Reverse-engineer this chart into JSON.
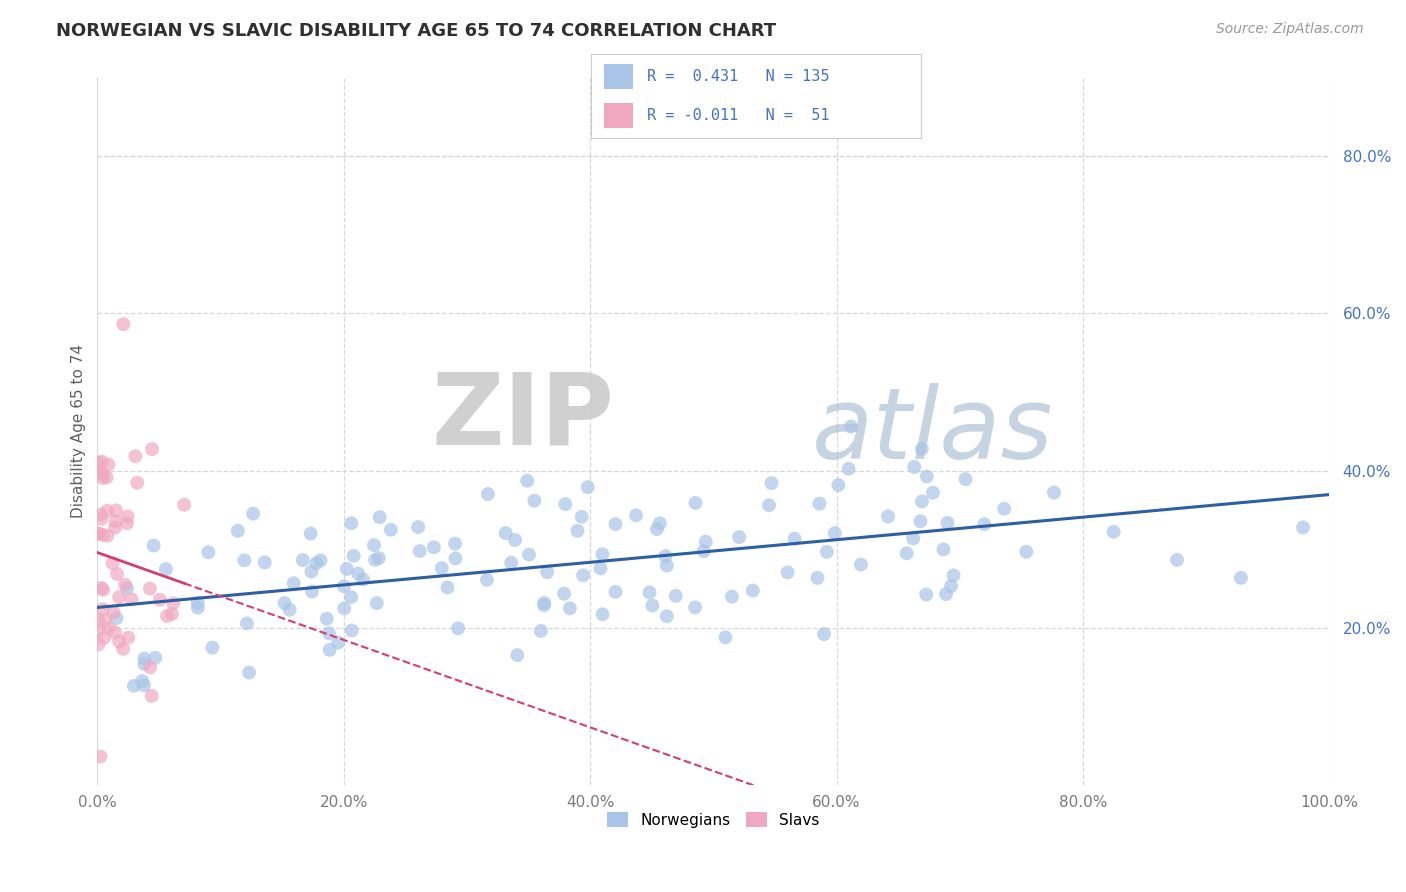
{
  "title": "NORWEGIAN VS SLAVIC DISABILITY AGE 65 TO 74 CORRELATION CHART",
  "source": "Source: ZipAtlas.com",
  "ylabel": "Disability Age 65 to 74",
  "xlim": [
    0.0,
    1.0
  ],
  "ylim": [
    0.0,
    0.9
  ],
  "xticks": [
    0.0,
    0.2,
    0.4,
    0.6,
    0.8,
    1.0
  ],
  "xtick_labels": [
    "0.0%",
    "20.0%",
    "40.0%",
    "60.0%",
    "80.0%",
    "100.0%"
  ],
  "yticks": [
    0.2,
    0.4,
    0.6,
    0.8
  ],
  "ytick_labels": [
    "20.0%",
    "40.0%",
    "60.0%",
    "80.0%"
  ],
  "norwegian_color": "#a8c4e8",
  "slav_color": "#f0a8c0",
  "norwegian_line_color": "#2e5fa3",
  "slav_line_color": "#d04070",
  "R_norwegian": 0.431,
  "N_norwegian": 135,
  "R_slav": -0.011,
  "N_slav": 51,
  "watermark_zip": "ZIP",
  "watermark_atlas": "atlas",
  "background_color": "#ffffff",
  "grid_color": "#d8d8d8",
  "title_color": "#303030",
  "legend_text_color": "#4472c4",
  "title_fontsize": 13,
  "source_fontsize": 10,
  "tick_fontsize": 11,
  "ylabel_fontsize": 11
}
